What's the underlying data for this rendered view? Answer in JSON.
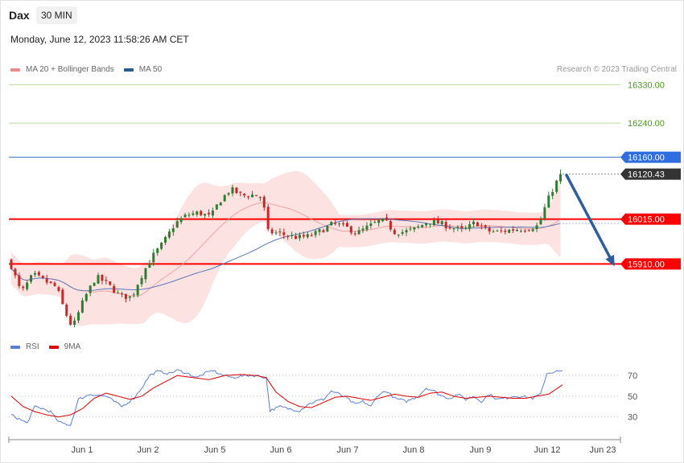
{
  "header": {
    "instrument": "Dax",
    "timeframe": "30 MIN",
    "datetime": "Monday, June 12, 2023 11:58:26 AM CET"
  },
  "legend": {
    "price": [
      {
        "label": "MA 20 + Bollinger Bands",
        "color": "#f08a8a"
      },
      {
        "label": "MA 50",
        "color": "#2b5a9b"
      }
    ],
    "rsi": [
      {
        "label": "RSI",
        "color": "#5b7fd6"
      },
      {
        "label": "9MA",
        "color": "#e00000"
      }
    ]
  },
  "credit": "Research © 2023 Trading Central",
  "colors": {
    "up": "#2e7d32",
    "down": "#c62828",
    "band_fill": "#fde2e2",
    "ma20": "#f3a0a0",
    "ma50": "#5a78b8",
    "resistance_green": "#b8d99a",
    "pivot_red": "#ff0000",
    "blue_level": "#3a6fc4",
    "arrow": "#2f5d9e"
  },
  "chart_data": {
    "type": "candlestick",
    "x_labels": [
      "Jun 1",
      "Jun 2",
      "Jun 5",
      "Jun 6",
      "Jun 7",
      "Jun 8",
      "Jun 9",
      "Jun 12",
      "Jun 23"
    ],
    "ylim": [
      15745,
      16355
    ],
    "levels": [
      {
        "value": "16330.00",
        "price": 16330,
        "style": "green"
      },
      {
        "value": "16240.00",
        "price": 16240,
        "style": "green"
      },
      {
        "value": "16160.00",
        "price": 16160,
        "style": "blue"
      },
      {
        "value": "16120.43",
        "price": 16120.43,
        "style": "current"
      },
      {
        "value": "16015.00",
        "price": 16015,
        "style": "red"
      },
      {
        "value": "15910.00",
        "price": 15910,
        "style": "red"
      }
    ],
    "price_path": [
      [
        0,
        15918
      ],
      [
        3,
        15842
      ],
      [
        6,
        15885
      ],
      [
        9,
        15870
      ],
      [
        12,
        15855
      ],
      [
        14,
        15800
      ],
      [
        16,
        15760
      ],
      [
        19,
        15830
      ],
      [
        22,
        15880
      ],
      [
        25,
        15862
      ],
      [
        28,
        15835
      ],
      [
        31,
        15832
      ],
      [
        33,
        15875
      ],
      [
        36,
        15925
      ],
      [
        39,
        15960
      ],
      [
        42,
        16005
      ],
      [
        45,
        16025
      ],
      [
        48,
        16030
      ],
      [
        51,
        16020
      ],
      [
        53,
        16055
      ],
      [
        56,
        16085
      ],
      [
        59,
        16070
      ],
      [
        62,
        16072
      ],
      [
        64,
        16065
      ],
      [
        65.5,
        15985
      ],
      [
        68,
        15982
      ],
      [
        71,
        15975
      ],
      [
        73,
        15972
      ],
      [
        76,
        15975
      ],
      [
        79,
        15988
      ],
      [
        82,
        16005
      ],
      [
        85,
        15997
      ],
      [
        88,
        15982
      ],
      [
        91,
        15998
      ],
      [
        94,
        16012
      ],
      [
        96,
        16005
      ],
      [
        97,
        15985
      ],
      [
        100,
        15985
      ],
      [
        103,
        15993
      ],
      [
        106,
        16010
      ],
      [
        109,
        16005
      ],
      [
        112,
        15995
      ],
      [
        115,
        15988
      ],
      [
        118,
        16008
      ],
      [
        121,
        15987
      ],
      [
        124,
        15985
      ],
      [
        127,
        15990
      ],
      [
        131,
        15993
      ],
      [
        134,
        16000
      ],
      [
        135,
        16030
      ],
      [
        137,
        16075
      ],
      [
        139.5,
        16120
      ]
    ],
    "rsi": {
      "levels": [
        70,
        50,
        30
      ],
      "ylim": [
        15,
        88
      ],
      "rsi_path": [
        [
          0,
          32
        ],
        [
          2,
          28
        ],
        [
          4,
          24
        ],
        [
          6,
          40
        ],
        [
          8,
          38
        ],
        [
          10,
          35
        ],
        [
          12,
          25
        ],
        [
          15,
          22
        ],
        [
          17,
          47
        ],
        [
          20,
          52
        ],
        [
          24,
          50
        ],
        [
          28,
          40
        ],
        [
          31,
          48
        ],
        [
          33,
          58
        ],
        [
          35,
          70
        ],
        [
          37,
          74
        ],
        [
          40,
          72
        ],
        [
          42,
          75
        ],
        [
          44,
          73
        ],
        [
          47,
          68
        ],
        [
          49,
          72
        ],
        [
          51,
          75
        ],
        [
          53,
          71
        ],
        [
          56,
          68
        ],
        [
          59,
          70
        ],
        [
          62,
          70
        ],
        [
          64.5,
          68
        ],
        [
          65.5,
          36
        ],
        [
          68,
          40
        ],
        [
          70,
          38
        ],
        [
          73,
          36
        ],
        [
          75,
          42
        ],
        [
          77,
          45
        ],
        [
          79,
          47
        ],
        [
          81,
          55
        ],
        [
          83,
          52
        ],
        [
          85,
          48
        ],
        [
          87,
          42
        ],
        [
          89,
          45
        ],
        [
          91,
          40
        ],
        [
          93,
          52
        ],
        [
          95,
          55
        ],
        [
          97,
          48
        ],
        [
          100,
          45
        ],
        [
          103,
          50
        ],
        [
          105,
          58
        ],
        [
          107,
          55
        ],
        [
          109,
          50
        ],
        [
          111,
          48
        ],
        [
          113,
          52
        ],
        [
          115,
          47
        ],
        [
          117,
          50
        ],
        [
          119,
          45
        ],
        [
          121,
          52
        ],
        [
          123,
          47
        ],
        [
          125,
          48
        ],
        [
          127,
          50
        ],
        [
          129,
          50
        ],
        [
          132,
          48
        ],
        [
          134,
          52
        ],
        [
          135.5,
          72
        ],
        [
          138,
          74
        ],
        [
          139.5,
          74
        ]
      ],
      "ma_path": [
        [
          0,
          50
        ],
        [
          3,
          40
        ],
        [
          6,
          35
        ],
        [
          9,
          32
        ],
        [
          12,
          30
        ],
        [
          15,
          32
        ],
        [
          18,
          38
        ],
        [
          21,
          48
        ],
        [
          24,
          53
        ],
        [
          27,
          50
        ],
        [
          30,
          47
        ],
        [
          33,
          50
        ],
        [
          36,
          58
        ],
        [
          39,
          64
        ],
        [
          42,
          70
        ],
        [
          46,
          68
        ],
        [
          50,
          66
        ],
        [
          54,
          70
        ],
        [
          58,
          71
        ],
        [
          62,
          70
        ],
        [
          64.5,
          68
        ],
        [
          67,
          54
        ],
        [
          70,
          45
        ],
        [
          73,
          40
        ],
        [
          76,
          39
        ],
        [
          79,
          44
        ],
        [
          82,
          49
        ],
        [
          85,
          50
        ],
        [
          88,
          48
        ],
        [
          91,
          46
        ],
        [
          94,
          49
        ],
        [
          97,
          52
        ],
        [
          100,
          50
        ],
        [
          103,
          49
        ],
        [
          106,
          53
        ],
        [
          109,
          54
        ],
        [
          112,
          50
        ],
        [
          115,
          48
        ],
        [
          118,
          49
        ],
        [
          121,
          50
        ],
        [
          124,
          49
        ],
        [
          127,
          48
        ],
        [
          130,
          48
        ],
        [
          133,
          50
        ],
        [
          136,
          52
        ],
        [
          139.5,
          61
        ]
      ]
    }
  }
}
